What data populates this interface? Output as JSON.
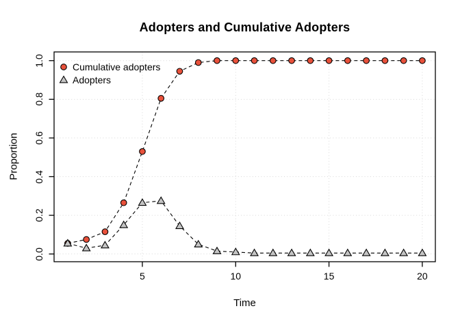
{
  "chart_data": {
    "type": "line",
    "title": "Adopters and Cumulative Adopters",
    "xlabel": "Time",
    "ylabel": "Proportion",
    "x": [
      1,
      2,
      3,
      4,
      5,
      6,
      7,
      8,
      9,
      10,
      11,
      12,
      13,
      14,
      15,
      16,
      17,
      18,
      19,
      20
    ],
    "series": [
      {
        "name": "Cumulative adopters",
        "marker": "circle",
        "marker_fill": "#e8513b",
        "values": [
          0.055,
          0.075,
          0.115,
          0.265,
          0.53,
          0.805,
          0.945,
          0.99,
          1.0,
          1.0,
          1.0,
          1.0,
          1.0,
          1.0,
          1.0,
          1.0,
          1.0,
          1.0,
          1.0,
          1.0
        ]
      },
      {
        "name": "Adopters",
        "marker": "triangle",
        "marker_fill": "#c4c4c4",
        "values": [
          0.055,
          0.03,
          0.045,
          0.15,
          0.265,
          0.275,
          0.145,
          0.05,
          0.015,
          0.01,
          0.005,
          0.005,
          0.005,
          0.005,
          0.005,
          0.005,
          0.005,
          0.005,
          0.005,
          0.005
        ]
      }
    ],
    "xticks": [
      5,
      10,
      15,
      20
    ],
    "xtick_labels": [
      "5",
      "10",
      "15",
      "20"
    ],
    "yticks": [
      0.0,
      0.2,
      0.4,
      0.6,
      0.8,
      1.0
    ],
    "ytick_labels": [
      "0.0",
      "0.2",
      "0.4",
      "0.6",
      "0.8",
      "1.0"
    ],
    "xlim": [
      0.27,
      20.7
    ],
    "ylim": [
      -0.04,
      1.045
    ],
    "grid": "dotted",
    "grid_color": "#d8d8d8",
    "line_style": "dashed",
    "line_color": "#000000",
    "frame_color": "#000000",
    "background": "#ffffff",
    "legend_position": "top-left"
  }
}
